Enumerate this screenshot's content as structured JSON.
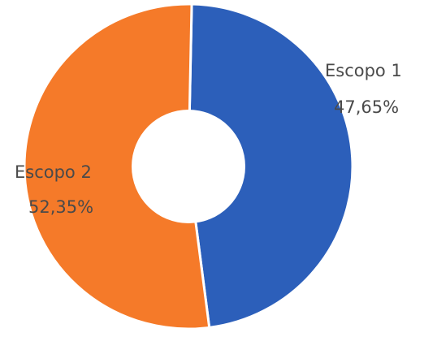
{
  "chart_data": {
    "type": "pie",
    "donut": true,
    "slices": [
      {
        "label": "Escopo 1",
        "value": 47.65,
        "value_label": "47,65%",
        "color": "#2c5fba"
      },
      {
        "label": "Escopo 2",
        "value": 52.35,
        "value_label": "52,35%",
        "color": "#f57a29"
      }
    ],
    "legend": "none",
    "data_labels": "on-slice"
  }
}
